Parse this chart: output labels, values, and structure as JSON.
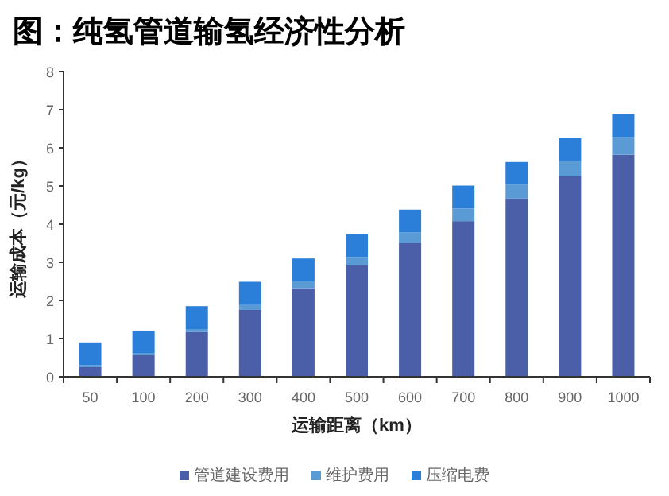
{
  "chart_data": {
    "type": "bar",
    "title": "图：纯氢管道输氢经济性分析",
    "xlabel": "运输距离（km）",
    "ylabel": "运输成本（元/kg）",
    "categories": [
      "50",
      "100",
      "200",
      "300",
      "400",
      "500",
      "600",
      "700",
      "800",
      "900",
      "1000"
    ],
    "stacked": true,
    "ylim": [
      0,
      8
    ],
    "yticks": [
      0,
      1,
      2,
      3,
      4,
      5,
      6,
      7,
      8
    ],
    "grid": false,
    "legend": "bottom",
    "series": [
      {
        "name": "管道建设费用",
        "color": "#4a5fa8",
        "values": [
          0.25,
          0.57,
          1.17,
          1.75,
          2.32,
          2.92,
          3.5,
          4.08,
          4.67,
          5.25,
          5.82
        ]
      },
      {
        "name": "维护费用",
        "color": "#5b9bd5",
        "values": [
          0.05,
          0.04,
          0.08,
          0.13,
          0.18,
          0.22,
          0.28,
          0.33,
          0.36,
          0.4,
          0.47
        ]
      },
      {
        "name": "压缩电费",
        "color": "#2b7fd8",
        "values": [
          0.6,
          0.6,
          0.6,
          0.61,
          0.6,
          0.6,
          0.6,
          0.6,
          0.6,
          0.6,
          0.6
        ]
      }
    ]
  }
}
